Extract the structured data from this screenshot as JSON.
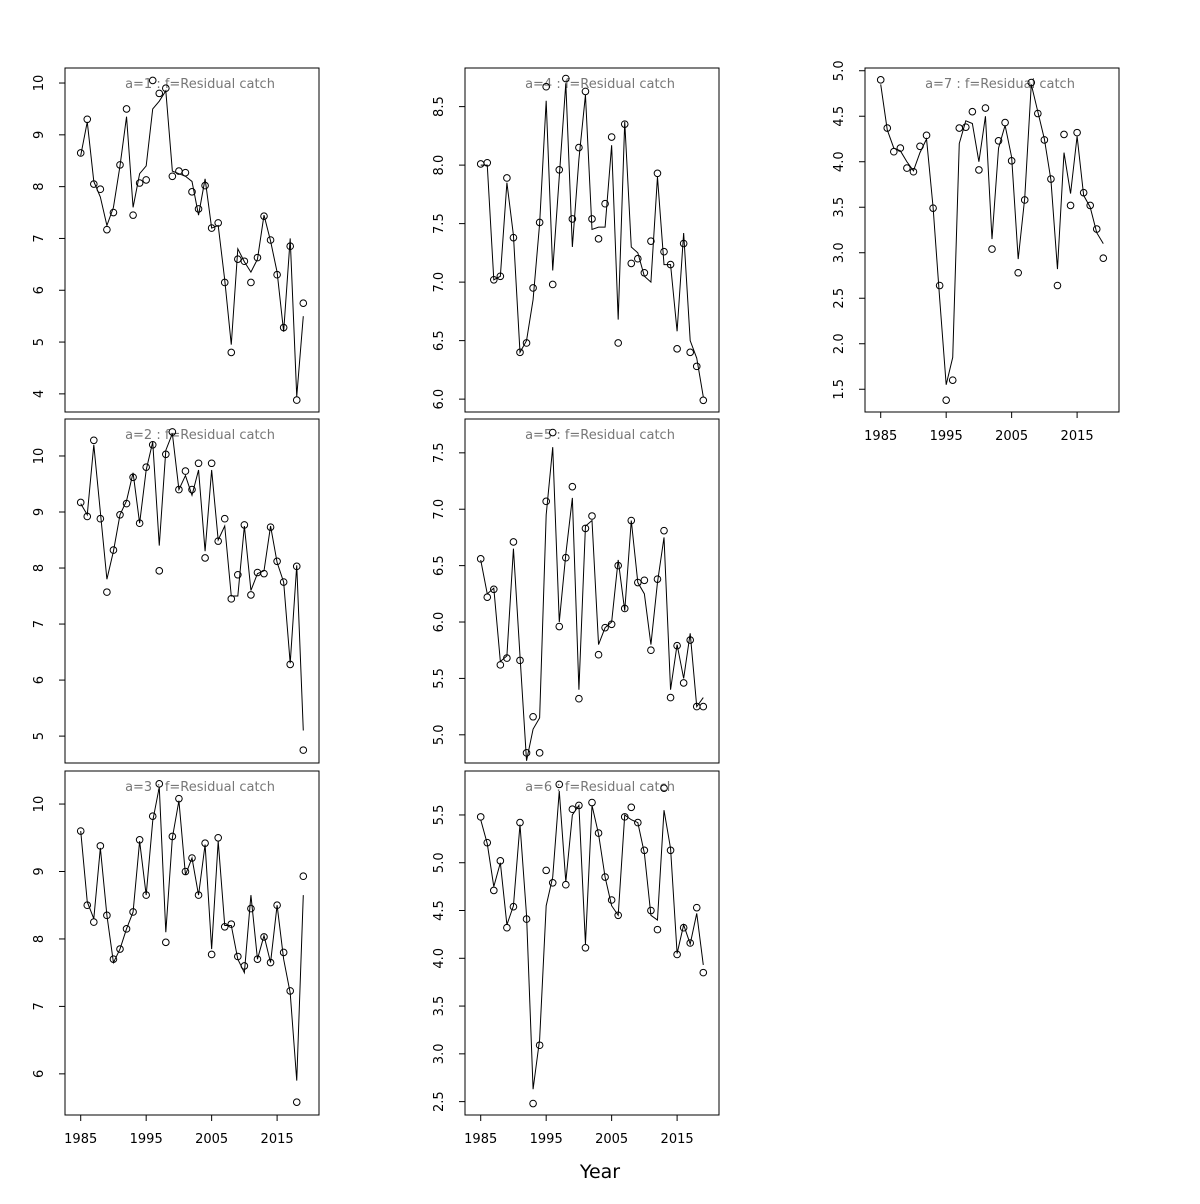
{
  "xlabel": "Year",
  "chart_data": [
    {
      "type": "scatter",
      "title": "a=1  :  f=Residual catch",
      "x": [
        1985,
        1986,
        1987,
        1988,
        1989,
        1990,
        1991,
        1992,
        1993,
        1994,
        1995,
        1996,
        1997,
        1998,
        1999,
        2000,
        2001,
        2002,
        2003,
        2004,
        2005,
        2006,
        2007,
        2008,
        2009,
        2010,
        2011,
        2012,
        2013,
        2014,
        2015,
        2016,
        2017,
        2018,
        2019
      ],
      "series": [
        {
          "type": "scatter",
          "color": "#000000",
          "values": [
            8.65,
            9.3,
            8.05,
            7.95,
            7.17,
            7.5,
            8.42,
            9.5,
            7.45,
            8.07,
            8.13,
            10.05,
            9.8,
            9.9,
            8.2,
            8.3,
            8.27,
            7.9,
            7.57,
            8.02,
            7.2,
            7.3,
            6.15,
            4.8,
            6.6,
            6.56,
            6.15,
            6.63,
            7.43,
            6.97,
            6.3,
            5.28,
            6.85,
            3.88,
            5.75
          ]
        },
        {
          "type": "line",
          "color": "#000000",
          "values": [
            8.6,
            9.25,
            8.1,
            7.8,
            7.25,
            7.6,
            8.4,
            9.35,
            7.6,
            8.25,
            8.4,
            9.5,
            9.65,
            9.85,
            8.3,
            8.25,
            8.2,
            8.1,
            7.45,
            8.15,
            7.2,
            7.25,
            6.2,
            4.95,
            6.8,
            6.55,
            6.35,
            6.6,
            7.45,
            6.95,
            6.35,
            5.2,
            7.0,
            3.95,
            5.5
          ]
        }
      ],
      "xlim": [
        1982.6,
        2021.4
      ],
      "ylim": [
        3.65,
        10.29
      ],
      "yticks": [
        4,
        5,
        6,
        7,
        8,
        9,
        10
      ]
    },
    {
      "type": "scatter",
      "title": "a=2  :  f=Residual catch",
      "x": [
        1985,
        1986,
        1987,
        1988,
        1989,
        1990,
        1991,
        1992,
        1993,
        1994,
        1995,
        1996,
        1997,
        1998,
        1999,
        2000,
        2001,
        2002,
        2003,
        2004,
        2005,
        2006,
        2007,
        2008,
        2009,
        2010,
        2011,
        2012,
        2013,
        2014,
        2015,
        2016,
        2017,
        2018,
        2019
      ],
      "series": [
        {
          "type": "scatter",
          "color": "#000000",
          "values": [
            9.17,
            8.92,
            10.28,
            8.88,
            7.57,
            8.32,
            8.95,
            9.15,
            9.62,
            8.8,
            9.8,
            10.2,
            7.95,
            10.03,
            10.43,
            9.4,
            9.73,
            9.4,
            9.87,
            8.18,
            9.87,
            8.48,
            8.88,
            7.45,
            7.88,
            8.77,
            7.52,
            7.92,
            7.9,
            8.73,
            8.12,
            7.75,
            6.28,
            8.03,
            4.75
          ]
        },
        {
          "type": "line",
          "color": "#000000",
          "values": [
            9.15,
            8.95,
            10.2,
            9.0,
            7.8,
            8.3,
            8.95,
            9.2,
            9.7,
            8.8,
            9.75,
            10.25,
            8.4,
            10.1,
            10.4,
            9.4,
            9.65,
            9.3,
            9.75,
            8.3,
            9.75,
            8.5,
            8.75,
            7.5,
            7.5,
            8.75,
            7.6,
            7.9,
            7.95,
            8.75,
            8.1,
            7.75,
            6.3,
            8.05,
            5.1
          ]
        }
      ],
      "xlim": [
        1982.6,
        2021.4
      ],
      "ylim": [
        4.52,
        10.66
      ],
      "yticks": [
        5,
        6,
        7,
        8,
        9,
        10
      ]
    },
    {
      "type": "scatter",
      "title": "a=3  :  f=Residual catch",
      "x": [
        1985,
        1986,
        1987,
        1988,
        1989,
        1990,
        1991,
        1992,
        1993,
        1994,
        1995,
        1996,
        1997,
        1998,
        1999,
        2000,
        2001,
        2002,
        2003,
        2004,
        2005,
        2006,
        2007,
        2008,
        2009,
        2010,
        2011,
        2012,
        2013,
        2014,
        2015,
        2016,
        2017,
        2018,
        2019
      ],
      "series": [
        {
          "type": "scatter",
          "color": "#000000",
          "values": [
            9.6,
            8.5,
            8.25,
            9.38,
            8.35,
            7.7,
            7.85,
            8.15,
            8.4,
            9.47,
            8.65,
            9.82,
            10.3,
            7.95,
            9.52,
            10.08,
            9.0,
            9.2,
            8.65,
            9.42,
            7.77,
            9.5,
            8.18,
            8.22,
            7.74,
            7.6,
            8.45,
            7.7,
            8.03,
            7.65,
            8.5,
            7.8,
            7.23,
            5.58,
            8.93
          ]
        },
        {
          "type": "line",
          "color": "#000000",
          "values": [
            9.6,
            8.55,
            8.3,
            9.35,
            8.35,
            7.65,
            7.85,
            8.15,
            8.4,
            9.45,
            8.65,
            9.75,
            10.25,
            8.1,
            9.5,
            10.05,
            8.95,
            9.2,
            8.65,
            9.4,
            7.85,
            9.45,
            8.2,
            8.2,
            7.7,
            7.5,
            8.65,
            7.7,
            8.05,
            7.65,
            8.5,
            7.7,
            7.2,
            5.9,
            8.65
          ]
        }
      ],
      "xlim": [
        1982.6,
        2021.4
      ],
      "ylim": [
        5.39,
        10.49
      ],
      "yticks": [
        6,
        7,
        8,
        9,
        10
      ],
      "xticks": [
        1985,
        1995,
        2005,
        2015
      ]
    },
    {
      "type": "scatter",
      "title": "a=4  :  f=Residual catch",
      "x": [
        1985,
        1986,
        1987,
        1988,
        1989,
        1990,
        1991,
        1992,
        1993,
        1994,
        1995,
        1996,
        1997,
        1998,
        1999,
        2000,
        2001,
        2002,
        2003,
        2004,
        2005,
        2006,
        2007,
        2008,
        2009,
        2010,
        2011,
        2012,
        2013,
        2014,
        2015,
        2016,
        2017,
        2018,
        2019
      ],
      "series": [
        {
          "type": "scatter",
          "color": "#000000",
          "values": [
            8.01,
            8.02,
            7.02,
            7.05,
            7.89,
            7.38,
            6.4,
            6.48,
            6.95,
            7.51,
            8.67,
            6.98,
            7.96,
            8.74,
            7.54,
            8.15,
            8.63,
            7.54,
            7.37,
            7.67,
            8.24,
            6.48,
            8.35,
            7.16,
            7.2,
            7.08,
            7.35,
            7.93,
            7.26,
            7.15,
            6.43,
            7.33,
            6.4,
            6.28,
            5.99
          ]
        },
        {
          "type": "line",
          "color": "#000000",
          "values": [
            8.0,
            8.0,
            7.02,
            7.05,
            7.85,
            7.4,
            6.4,
            6.5,
            6.85,
            7.5,
            8.55,
            7.1,
            7.9,
            8.7,
            7.3,
            8.05,
            8.6,
            7.45,
            7.47,
            7.47,
            8.17,
            6.68,
            8.37,
            7.3,
            7.25,
            7.05,
            7.0,
            7.9,
            7.15,
            7.15,
            6.58,
            7.42,
            6.5,
            6.35,
            6.02
          ]
        }
      ],
      "xlim": [
        1982.6,
        2021.4
      ],
      "ylim": [
        5.89,
        8.83
      ],
      "yticks": [
        {
          "value": 6,
          "label": "6.0"
        },
        6.5,
        {
          "value": 7,
          "label": "7.0"
        },
        7.5,
        {
          "value": 8,
          "label": "8.0"
        },
        8.5
      ]
    },
    {
      "type": "scatter",
      "title": "a=5  :  f=Residual catch",
      "x": [
        1985,
        1986,
        1987,
        1988,
        1989,
        1990,
        1991,
        1992,
        1993,
        1994,
        1995,
        1996,
        1997,
        1998,
        1999,
        2000,
        2001,
        2002,
        2003,
        2004,
        2005,
        2006,
        2007,
        2008,
        2009,
        2010,
        2011,
        2012,
        2013,
        2014,
        2015,
        2016,
        2017,
        2018,
        2019
      ],
      "series": [
        {
          "type": "scatter",
          "color": "#000000",
          "values": [
            6.56,
            6.22,
            6.29,
            5.62,
            5.68,
            6.71,
            5.66,
            4.84,
            5.16,
            4.84,
            7.07,
            7.68,
            5.96,
            6.57,
            7.2,
            5.32,
            6.83,
            6.94,
            5.71,
            5.95,
            5.98,
            6.5,
            6.12,
            6.9,
            6.35,
            6.37,
            5.75,
            6.38,
            6.81,
            5.33,
            5.79,
            5.46,
            5.84,
            5.25,
            5.25
          ]
        },
        {
          "type": "line",
          "color": "#000000",
          "values": [
            6.55,
            6.25,
            6.3,
            5.65,
            5.7,
            6.65,
            5.7,
            4.77,
            5.05,
            5.15,
            6.95,
            7.55,
            6.0,
            6.6,
            7.1,
            5.4,
            6.85,
            6.9,
            5.8,
            5.95,
            6.0,
            6.55,
            6.1,
            6.9,
            6.35,
            6.25,
            5.8,
            6.35,
            6.75,
            5.4,
            5.8,
            5.5,
            5.9,
            5.25,
            5.33
          ]
        }
      ],
      "xlim": [
        1982.6,
        2021.4
      ],
      "ylim": [
        4.75,
        7.8
      ],
      "yticks": [
        {
          "value": 5,
          "label": "5.0"
        },
        5.5,
        {
          "value": 6,
          "label": "6.0"
        },
        6.5,
        {
          "value": 7,
          "label": "7.0"
        },
        7.5
      ]
    },
    {
      "type": "scatter",
      "title": "a=6  :  f=Residual catch",
      "x": [
        1985,
        1986,
        1987,
        1988,
        1989,
        1990,
        1991,
        1992,
        1993,
        1994,
        1995,
        1996,
        1997,
        1998,
        1999,
        2000,
        2001,
        2002,
        2003,
        2004,
        2005,
        2006,
        2007,
        2008,
        2009,
        2010,
        2011,
        2012,
        2013,
        2014,
        2015,
        2016,
        2017,
        2018,
        2019
      ],
      "series": [
        {
          "type": "scatter",
          "color": "#000000",
          "values": [
            5.48,
            5.21,
            4.71,
            5.02,
            4.32,
            4.54,
            5.42,
            4.41,
            2.48,
            3.09,
            4.92,
            4.79,
            5.82,
            4.77,
            5.56,
            5.6,
            4.11,
            5.63,
            5.31,
            4.85,
            4.61,
            4.45,
            5.48,
            5.58,
            5.42,
            5.13,
            4.5,
            4.3,
            5.78,
            5.13,
            4.04,
            4.32,
            4.16,
            4.53,
            3.85
          ]
        },
        {
          "type": "line",
          "color": "#000000",
          "values": [
            5.45,
            5.2,
            4.75,
            5.0,
            4.35,
            4.55,
            5.4,
            4.45,
            2.63,
            3.15,
            4.55,
            4.85,
            5.75,
            4.8,
            5.5,
            5.6,
            4.15,
            5.6,
            5.3,
            4.85,
            4.55,
            4.45,
            5.5,
            5.45,
            5.42,
            5.1,
            4.45,
            4.4,
            5.55,
            5.15,
            4.05,
            4.35,
            4.15,
            4.47,
            3.93
          ]
        }
      ],
      "xlim": [
        1982.6,
        2021.4
      ],
      "ylim": [
        2.36,
        5.96
      ],
      "yticks": [
        2.5,
        {
          "value": 3,
          "label": "3.0"
        },
        3.5,
        {
          "value": 4,
          "label": "4.0"
        },
        4.5,
        {
          "value": 5,
          "label": "5.0"
        },
        5.5
      ],
      "xticks": [
        1985,
        1995,
        2005,
        2015
      ]
    },
    {
      "type": "scatter",
      "title": "a=7  :  f=Residual catch",
      "x": [
        1985,
        1986,
        1987,
        1988,
        1989,
        1990,
        1991,
        1992,
        1993,
        1994,
        1995,
        1996,
        1997,
        1998,
        1999,
        2000,
        2001,
        2002,
        2003,
        2004,
        2005,
        2006,
        2007,
        2008,
        2009,
        2010,
        2011,
        2012,
        2013,
        2014,
        2015,
        2016,
        2017,
        2018,
        2019
      ],
      "series": [
        {
          "type": "scatter",
          "color": "#000000",
          "values": [
            4.9,
            4.37,
            4.11,
            4.15,
            3.93,
            3.89,
            4.17,
            4.29,
            3.49,
            2.64,
            1.38,
            1.6,
            4.37,
            4.38,
            4.55,
            3.91,
            4.59,
            3.04,
            4.23,
            4.43,
            4.01,
            2.78,
            3.58,
            4.87,
            4.53,
            4.24,
            3.81,
            2.64,
            4.3,
            3.52,
            4.32,
            3.66,
            3.52,
            3.26,
            2.94
          ]
        },
        {
          "type": "line",
          "color": "#000000",
          "values": [
            4.85,
            4.35,
            4.15,
            4.12,
            4.0,
            3.9,
            4.1,
            4.25,
            3.5,
            2.5,
            1.55,
            1.85,
            4.2,
            4.45,
            4.42,
            4.0,
            4.5,
            3.15,
            4.15,
            4.4,
            4.05,
            2.93,
            3.6,
            4.85,
            4.55,
            4.25,
            3.8,
            2.82,
            4.1,
            3.65,
            4.28,
            3.63,
            3.5,
            3.22,
            3.1
          ]
        }
      ],
      "xlim": [
        1982.6,
        2021.4
      ],
      "ylim": [
        1.25,
        5.03
      ],
      "yticks": [
        1.5,
        {
          "value": 2,
          "label": "2.0"
        },
        2.5,
        {
          "value": 3,
          "label": "3.0"
        },
        3.5,
        {
          "value": 4,
          "label": "4.0"
        },
        4.5,
        {
          "value": 5,
          "label": "5.0"
        }
      ],
      "xticks": [
        1985,
        1995,
        2005,
        2015
      ]
    }
  ]
}
